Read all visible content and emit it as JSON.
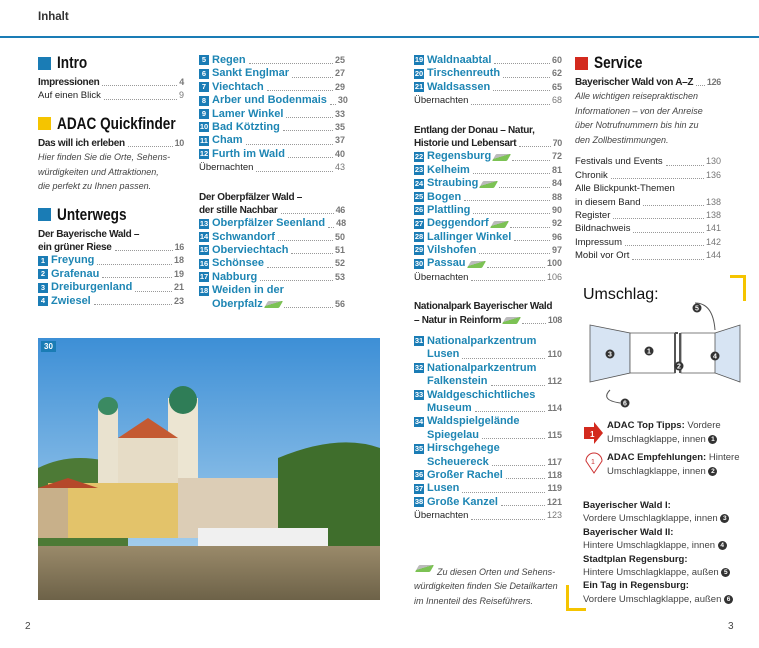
{
  "header": {
    "title": "Inhalt"
  },
  "colors": {
    "accent_blue": "#1a7cb5",
    "quickfinder_yellow": "#f5c400",
    "service_red": "#d32a1e"
  },
  "columns": [
    [
      {
        "t": "sec",
        "label": "Intro",
        "color": "#1a7cb5"
      },
      {
        "t": "entry",
        "label": "Impressionen",
        "page": "4",
        "bold": true
      },
      {
        "t": "entry",
        "label": "Auf einen Blick",
        "page": "9"
      },
      {
        "t": "gapS"
      },
      {
        "t": "sec",
        "label": "ADAC Quickfinder",
        "color": "#f5c400"
      },
      {
        "t": "entry",
        "label": "Das will ich erleben",
        "page": "10",
        "bold": true
      },
      {
        "t": "it",
        "label": "Hier finden Sie die Orte, Sehens-"
      },
      {
        "t": "it",
        "label": "würdigkeiten und Attraktionen,"
      },
      {
        "t": "it",
        "label": "die perfekt zu Ihnen passen."
      },
      {
        "t": "gapS"
      },
      {
        "t": "sec",
        "label": "Unterwegs",
        "color": "#1a7cb5"
      },
      {
        "t": "head",
        "label": "Der Bayerische Wald –"
      },
      {
        "t": "entry",
        "label": "ein grüner Riese",
        "page": "16",
        "bold": true
      },
      {
        "t": "num",
        "n": "1",
        "label": "Freyung",
        "page": "18"
      },
      {
        "t": "num",
        "n": "2",
        "label": "Grafenau",
        "page": "19"
      },
      {
        "t": "num",
        "n": "3",
        "label": "Dreiburgenland",
        "page": "21"
      },
      {
        "t": "num",
        "n": "4",
        "label": "Zwiesel",
        "page": "23"
      }
    ],
    [
      {
        "t": "num",
        "n": "5",
        "label": "Regen",
        "page": "25"
      },
      {
        "t": "num",
        "n": "6",
        "label": "Sankt Englmar",
        "page": "27"
      },
      {
        "t": "num",
        "n": "7",
        "label": "Viechtach",
        "page": "29"
      },
      {
        "t": "num",
        "n": "8",
        "label": "Arber und Bodenmais",
        "page": "30"
      },
      {
        "t": "num",
        "n": "9",
        "label": "Lamer Winkel",
        "page": "33"
      },
      {
        "t": "num",
        "n": "10",
        "label": "Bad Kötzting",
        "page": "35"
      },
      {
        "t": "num",
        "n": "11",
        "label": "Cham",
        "page": "37"
      },
      {
        "t": "num",
        "n": "12",
        "label": "Furth im Wald",
        "page": "40"
      },
      {
        "t": "entry",
        "label": "Übernachten",
        "page": "43"
      },
      {
        "t": "gap"
      },
      {
        "t": "head",
        "label": "Der Oberpfälzer Wald –"
      },
      {
        "t": "entry",
        "label": "der stille Nachbar",
        "page": "46",
        "bold": true
      },
      {
        "t": "num",
        "n": "13",
        "label": "Oberpfälzer Seenland",
        "page": "48"
      },
      {
        "t": "num",
        "n": "14",
        "label": "Schwandorf",
        "page": "50"
      },
      {
        "t": "num",
        "n": "15",
        "label": "Oberviechtach",
        "page": "51"
      },
      {
        "t": "num",
        "n": "16",
        "label": "Schönsee",
        "page": "52"
      },
      {
        "t": "num",
        "n": "17",
        "label": "Nabburg",
        "page": "53"
      },
      {
        "t": "num",
        "n": "18",
        "label": "Weiden in der",
        "page": null
      },
      {
        "t": "cont",
        "label": "Oberpfalz",
        "page": "56",
        "map": true
      }
    ],
    [
      {
        "t": "num",
        "n": "19",
        "label": "Waldnaabtal",
        "page": "60"
      },
      {
        "t": "num",
        "n": "20",
        "label": "Tirschenreuth",
        "page": "62"
      },
      {
        "t": "num",
        "n": "21",
        "label": "Waldsassen",
        "page": "65"
      },
      {
        "t": "entry",
        "label": "Übernachten",
        "page": "68"
      },
      {
        "t": "gap"
      },
      {
        "t": "head",
        "label": "Entlang der Donau – Natur,"
      },
      {
        "t": "entry",
        "label": "Historie und Lebensart",
        "page": "70",
        "bold": true
      },
      {
        "t": "num",
        "n": "22",
        "label": "Regensburg",
        "page": "72",
        "map": true
      },
      {
        "t": "num",
        "n": "23",
        "label": "Kelheim",
        "page": "81"
      },
      {
        "t": "num",
        "n": "24",
        "label": "Straubing",
        "page": "84",
        "map": true
      },
      {
        "t": "num",
        "n": "25",
        "label": "Bogen",
        "page": "88"
      },
      {
        "t": "num",
        "n": "26",
        "label": "Plattling",
        "page": "90"
      },
      {
        "t": "num",
        "n": "27",
        "label": "Deggendorf",
        "page": "92",
        "map": true
      },
      {
        "t": "num",
        "n": "28",
        "label": "Lallinger Winkel",
        "page": "96"
      },
      {
        "t": "num",
        "n": "29",
        "label": "Vilshofen",
        "page": "97"
      },
      {
        "t": "num",
        "n": "30",
        "label": "Passau",
        "page": "100",
        "map": true
      },
      {
        "t": "entry",
        "label": "Übernachten",
        "page": "106"
      },
      {
        "t": "gap"
      },
      {
        "t": "head",
        "label": "Nationalpark Bayerischer Wald"
      },
      {
        "t": "entry",
        "label": "– Natur in Reinform",
        "page": "108",
        "bold": true,
        "map": true
      },
      {
        "t": "gapS"
      },
      {
        "t": "num",
        "n": "31",
        "label": "Nationalparkzentrum",
        "page": null
      },
      {
        "t": "cont",
        "label": "Lusen",
        "page": "110"
      },
      {
        "t": "num",
        "n": "32",
        "label": "Nationalparkzentrum",
        "page": null
      },
      {
        "t": "cont",
        "label": "Falkenstein",
        "page": "112"
      },
      {
        "t": "num",
        "n": "33",
        "label": "Waldgeschichtliches",
        "page": null
      },
      {
        "t": "cont",
        "label": "Museum",
        "page": "114"
      },
      {
        "t": "num",
        "n": "34",
        "label": "Waldspielgelände",
        "page": null
      },
      {
        "t": "cont",
        "label": "Spiegelau",
        "page": "115"
      },
      {
        "t": "num",
        "n": "35",
        "label": "Hirschgehege",
        "page": null
      },
      {
        "t": "cont",
        "label": "Scheuereck",
        "page": "117"
      },
      {
        "t": "num",
        "n": "36",
        "label": "Großer Rachel",
        "page": "118"
      },
      {
        "t": "num",
        "n": "37",
        "label": "Lusen",
        "page": "119"
      },
      {
        "t": "num",
        "n": "38",
        "label": "Große Kanzel",
        "page": "121"
      },
      {
        "t": "entry",
        "label": "Übernachten",
        "page": "123"
      },
      {
        "t": "gapL"
      },
      {
        "t": "itmap",
        "label": "Zu diesen Orten und Sehens-"
      },
      {
        "t": "it",
        "label": "würdigkeiten finden Sie Detailkarten"
      },
      {
        "t": "it",
        "label": "im Innenteil des Reiseführers."
      }
    ],
    [
      {
        "t": "sec",
        "label": "Service",
        "color": "#d32a1e"
      },
      {
        "t": "entry",
        "label": "Bayerischer Wald von A–Z",
        "page": "126",
        "bold": true
      },
      {
        "t": "it",
        "label": "Alle wichtigen reisepraktischen"
      },
      {
        "t": "it",
        "label": "Informationen – von der Anreise"
      },
      {
        "t": "it",
        "label": "über Notrufnummern bis hin zu"
      },
      {
        "t": "it",
        "label": "den Zollbestimmungen."
      },
      {
        "t": "gapS"
      },
      {
        "t": "entry",
        "label": "Festivals und Events",
        "page": "130"
      },
      {
        "t": "entry",
        "label": "Chronik",
        "page": "136"
      },
      {
        "t": "head2",
        "label": "Alle Blickpunkt-Themen"
      },
      {
        "t": "entry",
        "label": "in diesem Band",
        "page": "138"
      },
      {
        "t": "entry",
        "label": "Register",
        "page": "138"
      },
      {
        "t": "entry",
        "label": "Bildnachweis",
        "page": "141"
      },
      {
        "t": "entry",
        "label": "Impressum",
        "page": "142"
      },
      {
        "t": "entry",
        "label": "Mobil vor Ort",
        "page": "144"
      }
    ]
  ],
  "photo": {
    "badge": "30"
  },
  "cover": {
    "title": "Umschlag:",
    "diagram_numbers": [
      "1",
      "2",
      "3",
      "4",
      "5",
      "6"
    ],
    "legend": [
      {
        "icon": "1",
        "title": "ADAC Top Tipps:",
        "text1": " Vordere",
        "text2": "Umschlagklappe, innen",
        "ref": "1"
      },
      {
        "icon": "1",
        "title": "ADAC Empfehlungen:",
        "text1": " Hintere",
        "text2": "Umschlagklappe, innen",
        "ref": "2"
      }
    ],
    "maps": [
      {
        "title": "Bayerischer Wald I:",
        "text": "Vordere Umschlagklappe, innen",
        "ref": "3"
      },
      {
        "title": "Bayerischer Wald II:",
        "text": "Hintere Umschlagklappe, innen",
        "ref": "4"
      },
      {
        "title": "Stadtplan Regensburg:",
        "text": "Hintere Umschlagklappe, außen",
        "ref": "5"
      },
      {
        "title": "Ein Tag in Regensburg:",
        "text": "Vordere Umschlagklappe, außen",
        "ref": "6"
      }
    ]
  },
  "page_numbers": {
    "left": "2",
    "right": "3"
  }
}
